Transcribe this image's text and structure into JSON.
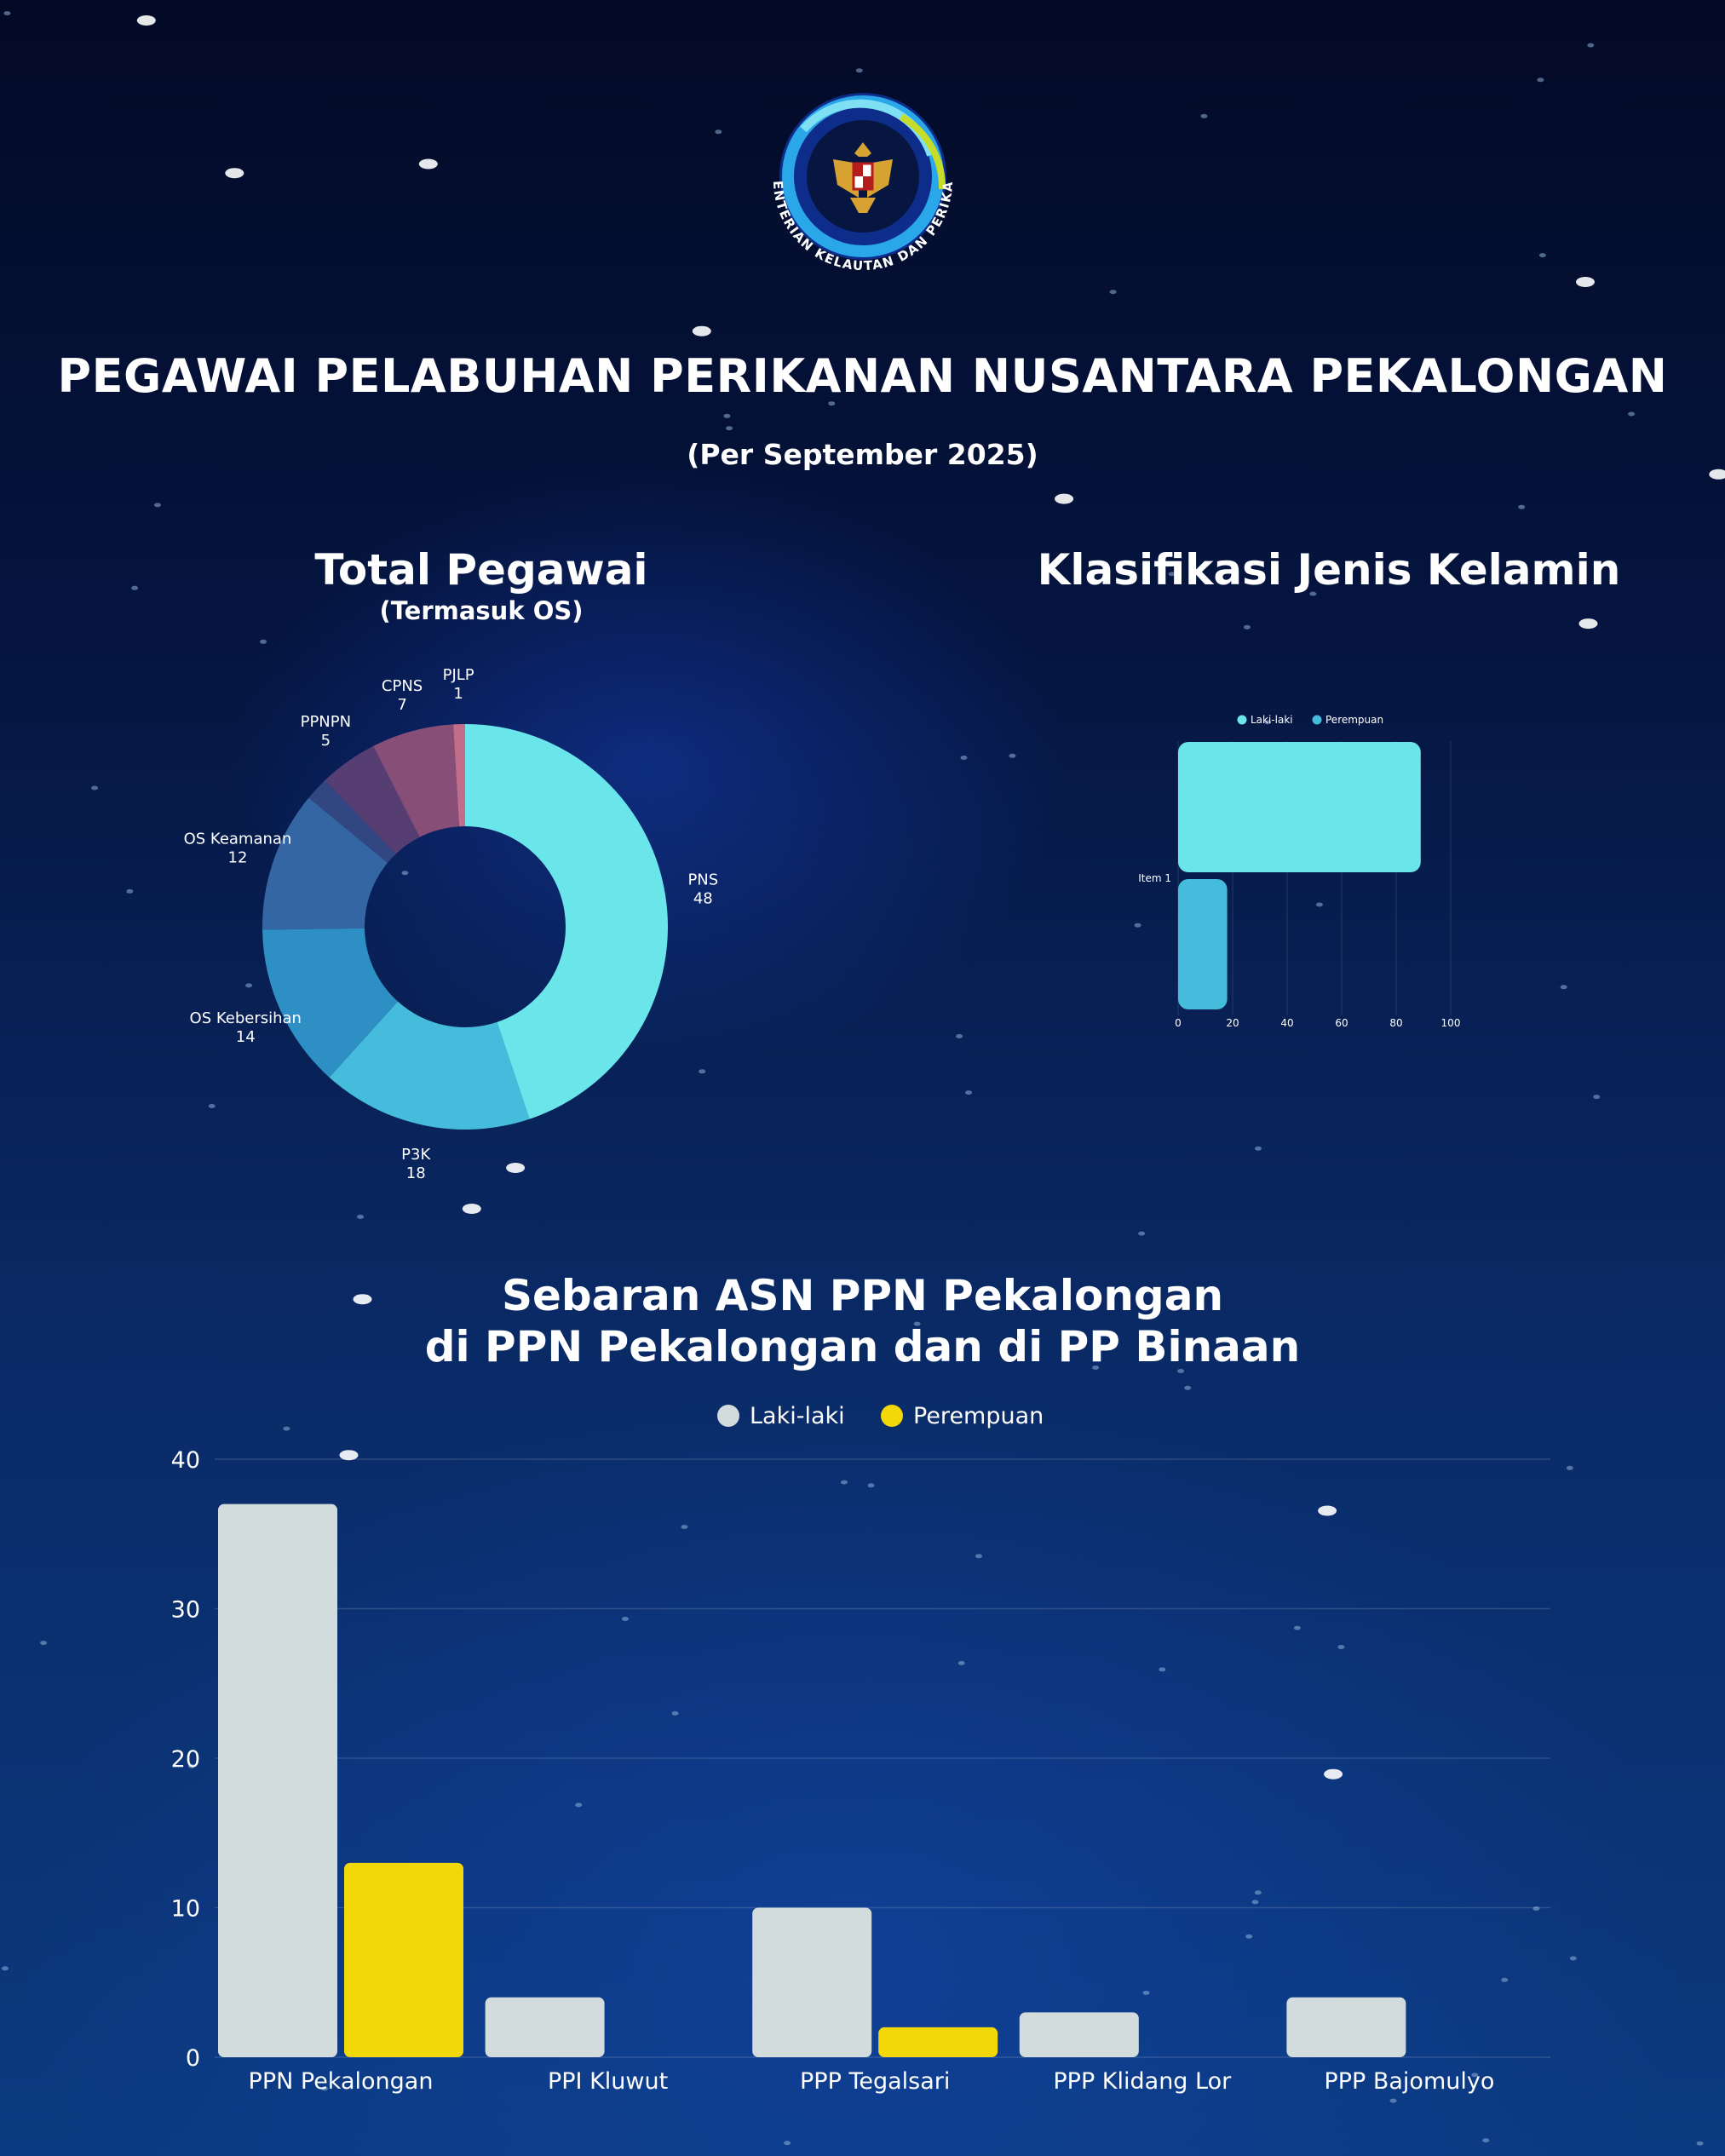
{
  "header": {
    "logo_text": "KEMENTERIAN KELAUTAN DAN PERIKANAN",
    "title": "PEGAWAI PELABUHAN PERIKANAN NUSANTARA PEKALONGAN",
    "subtitle": "(Per September 2025)"
  },
  "colors": {
    "background": "#061a4a",
    "cyan": "#6ae6ea",
    "teal": "#45bcdb",
    "steel": "#2d8fc4",
    "slate": "#3466a3",
    "navy": "#324682",
    "plum": "#563e72",
    "mauve": "#874e78",
    "pink": "#c26d89",
    "grey_bar": "#d2dcdc",
    "yellow_bar": "#f3d809"
  },
  "chart_data": [
    {
      "type": "pie",
      "title": "Total Pegawai",
      "subtitle": "(Termasuk OS)",
      "slices": [
        {
          "label": "PNS",
          "value": 48,
          "color": "#6ae6ea"
        },
        {
          "label": "P3K",
          "value": 18,
          "color": "#45bcdb"
        },
        {
          "label": "OS Kebersihan",
          "value": 14,
          "color": "#2d8fc4"
        },
        {
          "label": "OS Keamanan",
          "value": 12,
          "color": "#3466a3"
        },
        {
          "label": "",
          "value": 2,
          "color": "#324682"
        },
        {
          "label": "PPNPN",
          "value": 5,
          "color": "#563e72"
        },
        {
          "label": "CPNS",
          "value": 7,
          "color": "#874e78"
        },
        {
          "label": "PJLP",
          "value": 1,
          "color": "#c26d89"
        }
      ]
    },
    {
      "type": "bar",
      "orientation": "horizontal",
      "title": "Klasifikasi Jenis Kelamin",
      "categories": [
        "Item 1"
      ],
      "series": [
        {
          "name": "Laki-laki",
          "values": [
            89
          ],
          "color": "#6ae6ea"
        },
        {
          "name": "Perempuan",
          "values": [
            18
          ],
          "color": "#45bcdb"
        }
      ],
      "xlim": [
        0,
        100
      ],
      "xticks": [
        0,
        20,
        40,
        60,
        80,
        100
      ],
      "legend": "top",
      "grid": true
    },
    {
      "type": "bar",
      "title_lines": [
        "Sebaran ASN PPN Pekalongan",
        "di PPN Pekalongan dan di PP Binaan"
      ],
      "categories": [
        "PPN Pekalongan",
        "PPI Kluwut",
        "PPP Tegalsari",
        "PPP Klidang Lor",
        "PPP Bajomulyo"
      ],
      "series": [
        {
          "name": "Laki-laki",
          "values": [
            37,
            4,
            10,
            3,
            4
          ],
          "color": "#d2dcdc"
        },
        {
          "name": "Perempuan",
          "values": [
            13,
            0,
            2,
            0,
            0
          ],
          "color": "#f3d809"
        }
      ],
      "ylim": [
        0,
        40
      ],
      "yticks": [
        0,
        10,
        20,
        30,
        40
      ],
      "legend": "top",
      "grid": true
    }
  ]
}
